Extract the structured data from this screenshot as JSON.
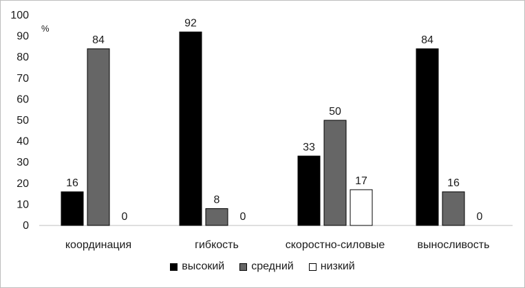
{
  "chart_data": {
    "type": "bar",
    "unit_label": "%",
    "categories": [
      "координация",
      "гибкость",
      "скоростно-силовые",
      "выносливость"
    ],
    "series": [
      {
        "name": "высокий",
        "color": "#000000",
        "values": [
          16,
          92,
          33,
          84
        ]
      },
      {
        "name": "средний",
        "color": "#666666",
        "values": [
          84,
          8,
          50,
          16
        ]
      },
      {
        "name": "низкий",
        "color": "#ffffff",
        "values": [
          0,
          0,
          17,
          0
        ]
      }
    ],
    "ylim": [
      0,
      100
    ],
    "yticks": [
      0,
      10,
      20,
      30,
      40,
      50,
      60,
      70,
      80,
      90,
      100
    ],
    "grid": false,
    "legend_position": "bottom"
  }
}
